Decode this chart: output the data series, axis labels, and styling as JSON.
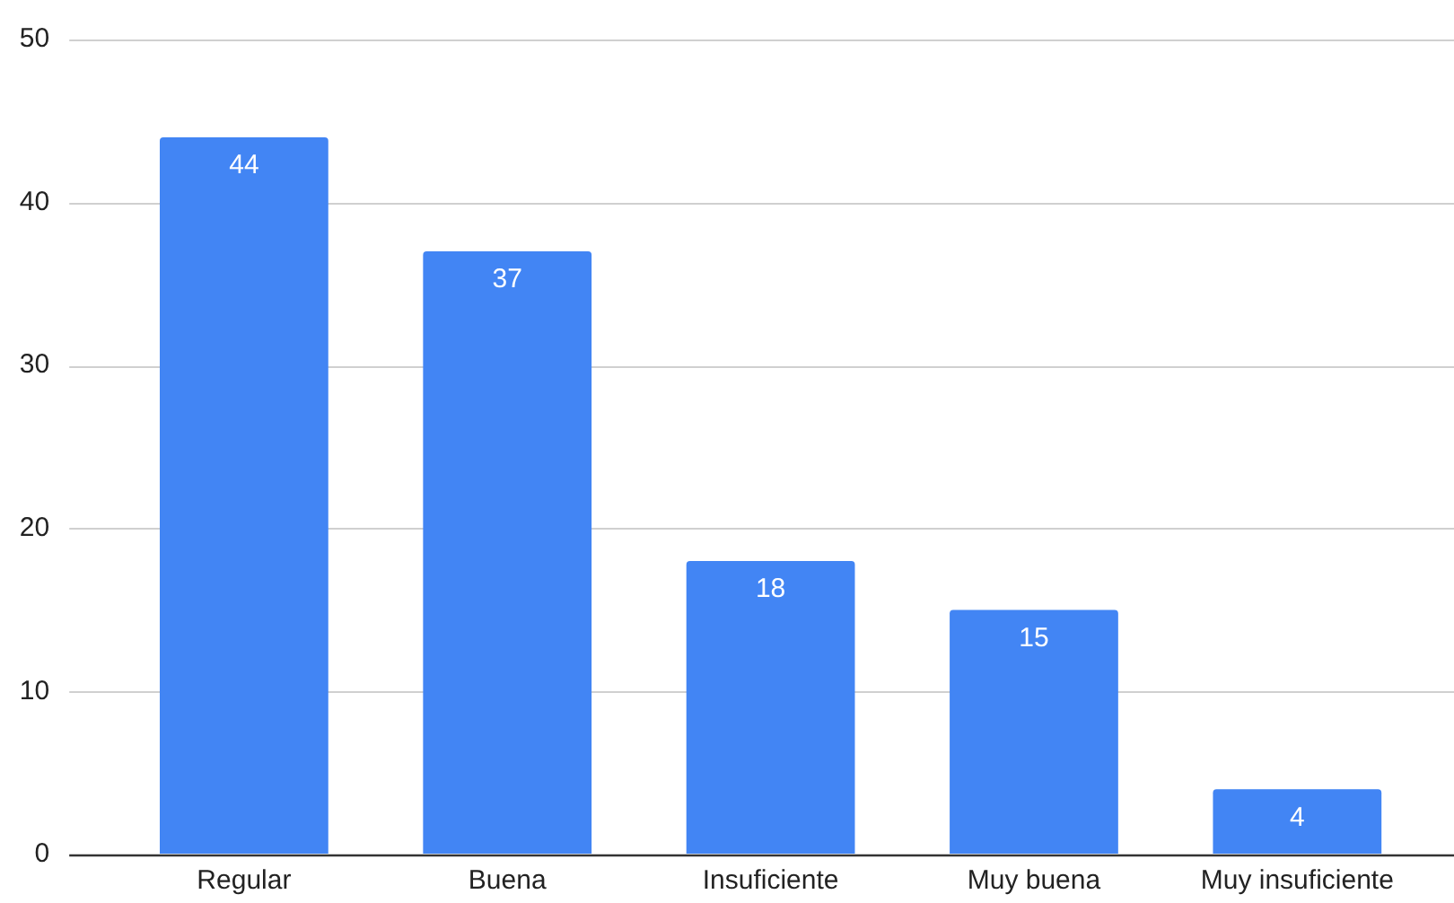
{
  "chart_data": {
    "type": "bar",
    "categories": [
      "Regular",
      "Buena",
      "Insuficiente",
      "Muy buena",
      "Muy insuficiente"
    ],
    "values": [
      44,
      37,
      18,
      15,
      4
    ],
    "color": "#4285f4",
    "ylim": [
      0,
      50
    ],
    "yticks": [
      0,
      10,
      20,
      30,
      40,
      50
    ],
    "grid": true,
    "data_labels": true
  }
}
